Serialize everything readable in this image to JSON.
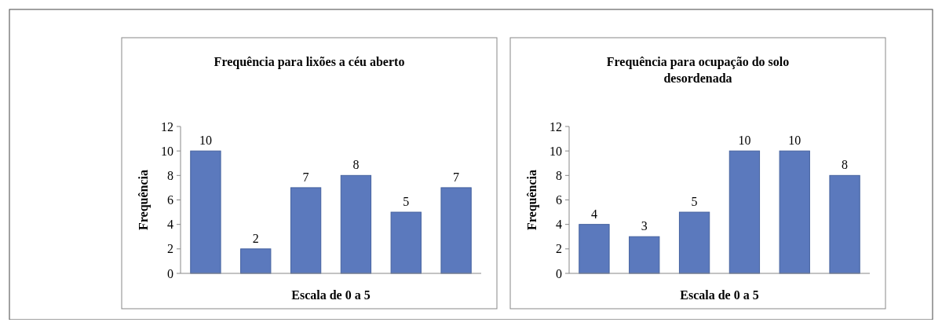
{
  "chart_data": [
    {
      "type": "bar",
      "title": "Frequência para lixões a céu aberto",
      "xlabel": "Escala de 0 a 5",
      "ylabel": "Frequência",
      "categories": [
        null,
        null,
        null,
        null,
        null,
        null
      ],
      "values": [
        10,
        2,
        7,
        8,
        5,
        7
      ],
      "color": "#5b79bd",
      "ylim": [
        0,
        12
      ],
      "yticks": [
        0,
        2,
        4,
        6,
        8,
        10,
        12
      ],
      "data_labels": true
    },
    {
      "type": "bar",
      "title": "Frequência para ocupação do solo desordenada",
      "xlabel": "Escala de 0 a 5",
      "ylabel": "Frequência",
      "categories": [
        null,
        null,
        null,
        null,
        null,
        null
      ],
      "values": [
        4,
        3,
        5,
        10,
        10,
        8
      ],
      "color": "#5b79bd",
      "ylim": [
        0,
        12
      ],
      "yticks": [
        0,
        2,
        4,
        6,
        8,
        10,
        12
      ],
      "data_labels": true
    }
  ]
}
